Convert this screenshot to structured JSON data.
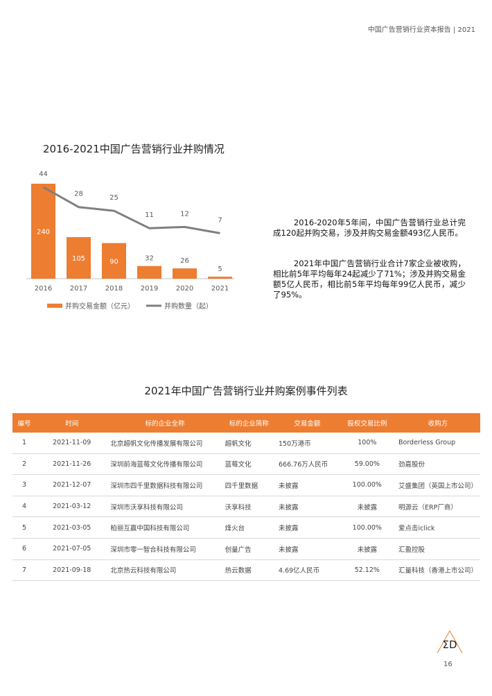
{
  "header": {
    "text": "中国广告营销行业资本报告 | 2021"
  },
  "chart_title": "2016-2021中国广告营销行业并购情况",
  "chart_data": {
    "type": "bar",
    "categories": [
      "2016",
      "2017",
      "2018",
      "2019",
      "2020",
      "2021"
    ],
    "series": [
      {
        "name": "并购交易金额（亿元）",
        "type": "bar",
        "values": [
          240,
          105,
          90,
          32,
          26,
          5
        ],
        "color": "#ed7d31"
      },
      {
        "name": "并购数量（起）",
        "type": "line",
        "values": [
          44,
          28,
          25,
          11,
          12,
          7
        ],
        "color": "#7f7f7f"
      }
    ],
    "legend": "bottom"
  },
  "paragraphs": [
    "2016-2020年5年间，中国广告营销行业总计完成120起并购交易，涉及并购交易金额493亿人民币。",
    "2021年中国广告营销行业合计7家企业被收购，相比前5年平均每年24起减少了71%；涉及并购交易金额5亿人民币，相比前5年平均每年99亿人民币，减少了95%。"
  ],
  "table_title": "2021年中国广告营销行业并购案例事件列表",
  "table": {
    "headers": [
      "编号",
      "时间",
      "标的企业全称",
      "标的企业简称",
      "交易金额",
      "股权交易比例",
      "收购方"
    ],
    "rows": [
      [
        "1",
        "2021-11-09",
        "北京超帆文化传播发展有限公司",
        "超帆文化",
        "150万港币",
        "100%",
        "Borderless Group"
      ],
      [
        "2",
        "2021-11-26",
        "深圳前海蓝莓文化传播有限公司",
        "蓝莓文化",
        "666.76万人民币",
        "59.00%",
        "劲嘉股份"
      ],
      [
        "3",
        "2021-12-07",
        "深圳市四千里数据科技有限公司",
        "四千里数据",
        "未披露",
        "100.00%",
        "艾盛集团（英国上市公司）"
      ],
      [
        "4",
        "2021-03-12",
        "深圳市沃享科技有限公司",
        "沃享科技",
        "未披露",
        "未披露",
        "明源云（ERP厂商）"
      ],
      [
        "5",
        "2021-03-05",
        "柏丽互赢中国科技有限公司",
        "烽火台",
        "未披露",
        "100.00%",
        "爱点击iclick"
      ],
      [
        "6",
        "2021-07-05",
        "深圳市零一智合科技有限公司",
        "创量广告",
        "未披露",
        "未披露",
        "汇盈控股"
      ],
      [
        "7",
        "2021-09-18",
        "北京热云科技有限公司",
        "热云数据",
        "4.69亿人民币",
        "52.12%",
        "汇量科技（香港上市公司）"
      ]
    ]
  },
  "logo": {
    "text": "ΣD"
  },
  "page_number": "16"
}
